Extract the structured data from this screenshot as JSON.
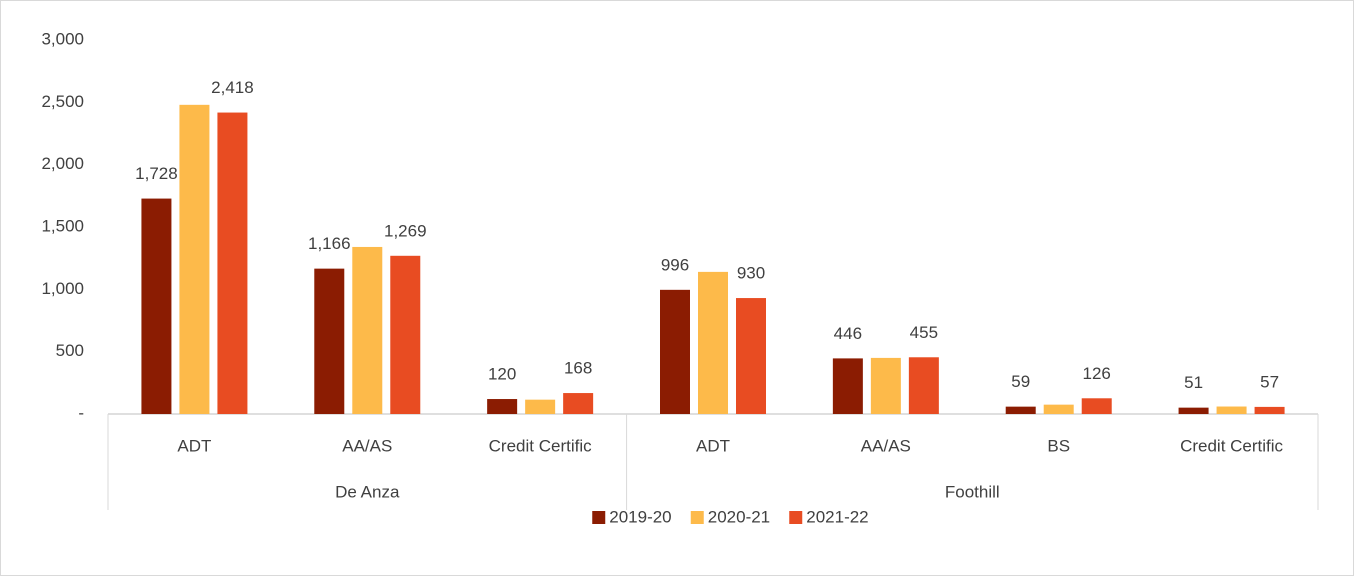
{
  "chart_data": {
    "type": "bar",
    "groups": [
      {
        "name": "De Anza",
        "categories": [
          "ADT",
          "AA/AS",
          "Credit Certific"
        ]
      },
      {
        "name": "Foothill",
        "categories": [
          "ADT",
          "AA/AS",
          "BS",
          "Credit Certific"
        ]
      }
    ],
    "series": [
      {
        "name": "2019-20",
        "color": "#8b1c02",
        "values": [
          1728,
          1166,
          120,
          996,
          446,
          59,
          51
        ],
        "value_labels": [
          "1,728",
          "1,166",
          "120",
          "996",
          "446",
          "59",
          "51"
        ]
      },
      {
        "name": "2020-21",
        "color": "#fdba4a",
        "values": [
          2480,
          1340,
          115,
          1140,
          450,
          75,
          60
        ]
      },
      {
        "name": "2021-22",
        "color": "#e84c22",
        "values": [
          2418,
          1269,
          168,
          930,
          455,
          126,
          57
        ],
        "value_labels": [
          "2,418",
          "1,269",
          "168",
          "930",
          "455",
          "126",
          "57"
        ]
      }
    ],
    "ylim": [
      0,
      3000
    ],
    "yticks": [
      {
        "value": 0,
        "label": "-"
      },
      500,
      {
        "value": 1000,
        "label": "1,000"
      },
      {
        "value": 1500,
        "label": "1,500"
      },
      {
        "value": 2000,
        "label": "2,000"
      },
      {
        "value": 2500,
        "label": "2,500"
      },
      {
        "value": 3000,
        "label": "3,000"
      }
    ],
    "legend": "bottom",
    "grid": false
  }
}
